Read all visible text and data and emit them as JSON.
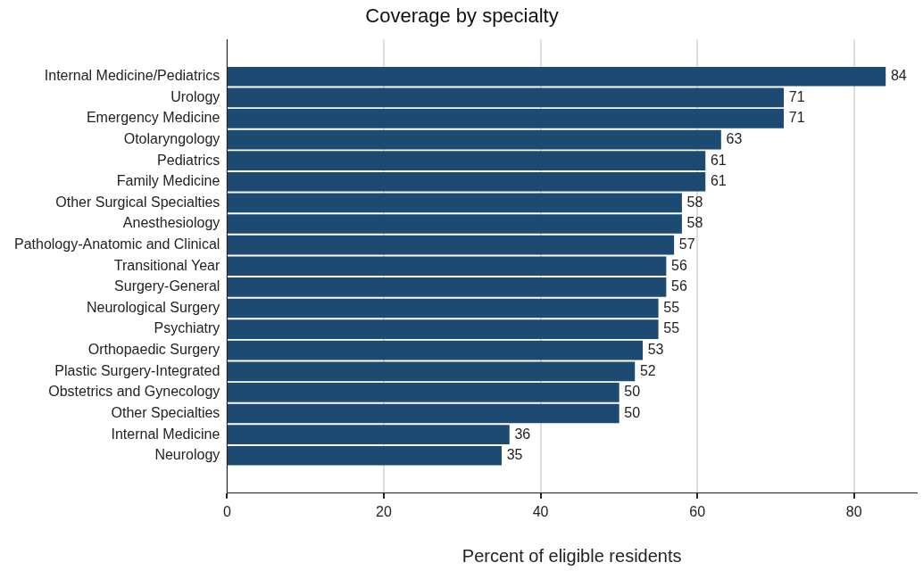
{
  "chart_data": {
    "type": "bar",
    "orientation": "horizontal",
    "title": "Coverage by specialty",
    "xlabel": "Percent of eligible residents",
    "categories": [
      "Internal Medicine/Pediatrics",
      "Urology",
      "Emergency Medicine",
      "Otolaryngology",
      "Pediatrics",
      "Family Medicine",
      "Other Surgical Specialties",
      "Anesthesiology",
      "Pathology-Anatomic and Clinical",
      "Transitional Year",
      "Surgery-General",
      "Neurological Surgery",
      "Psychiatry",
      "Orthopaedic Surgery",
      "Plastic Surgery-Integrated",
      "Obstetrics and Gynecology",
      "Other Specialties",
      "Internal Medicine",
      "Neurology"
    ],
    "values": [
      84,
      71,
      71,
      63,
      61,
      61,
      58,
      58,
      57,
      56,
      56,
      55,
      55,
      53,
      52,
      50,
      50,
      36,
      35
    ],
    "color": "#1c4a72",
    "xlim": [
      0,
      88
    ],
    "xticks": [
      0,
      20,
      40,
      60,
      80
    ],
    "grid": "x",
    "data_labels": true
  }
}
